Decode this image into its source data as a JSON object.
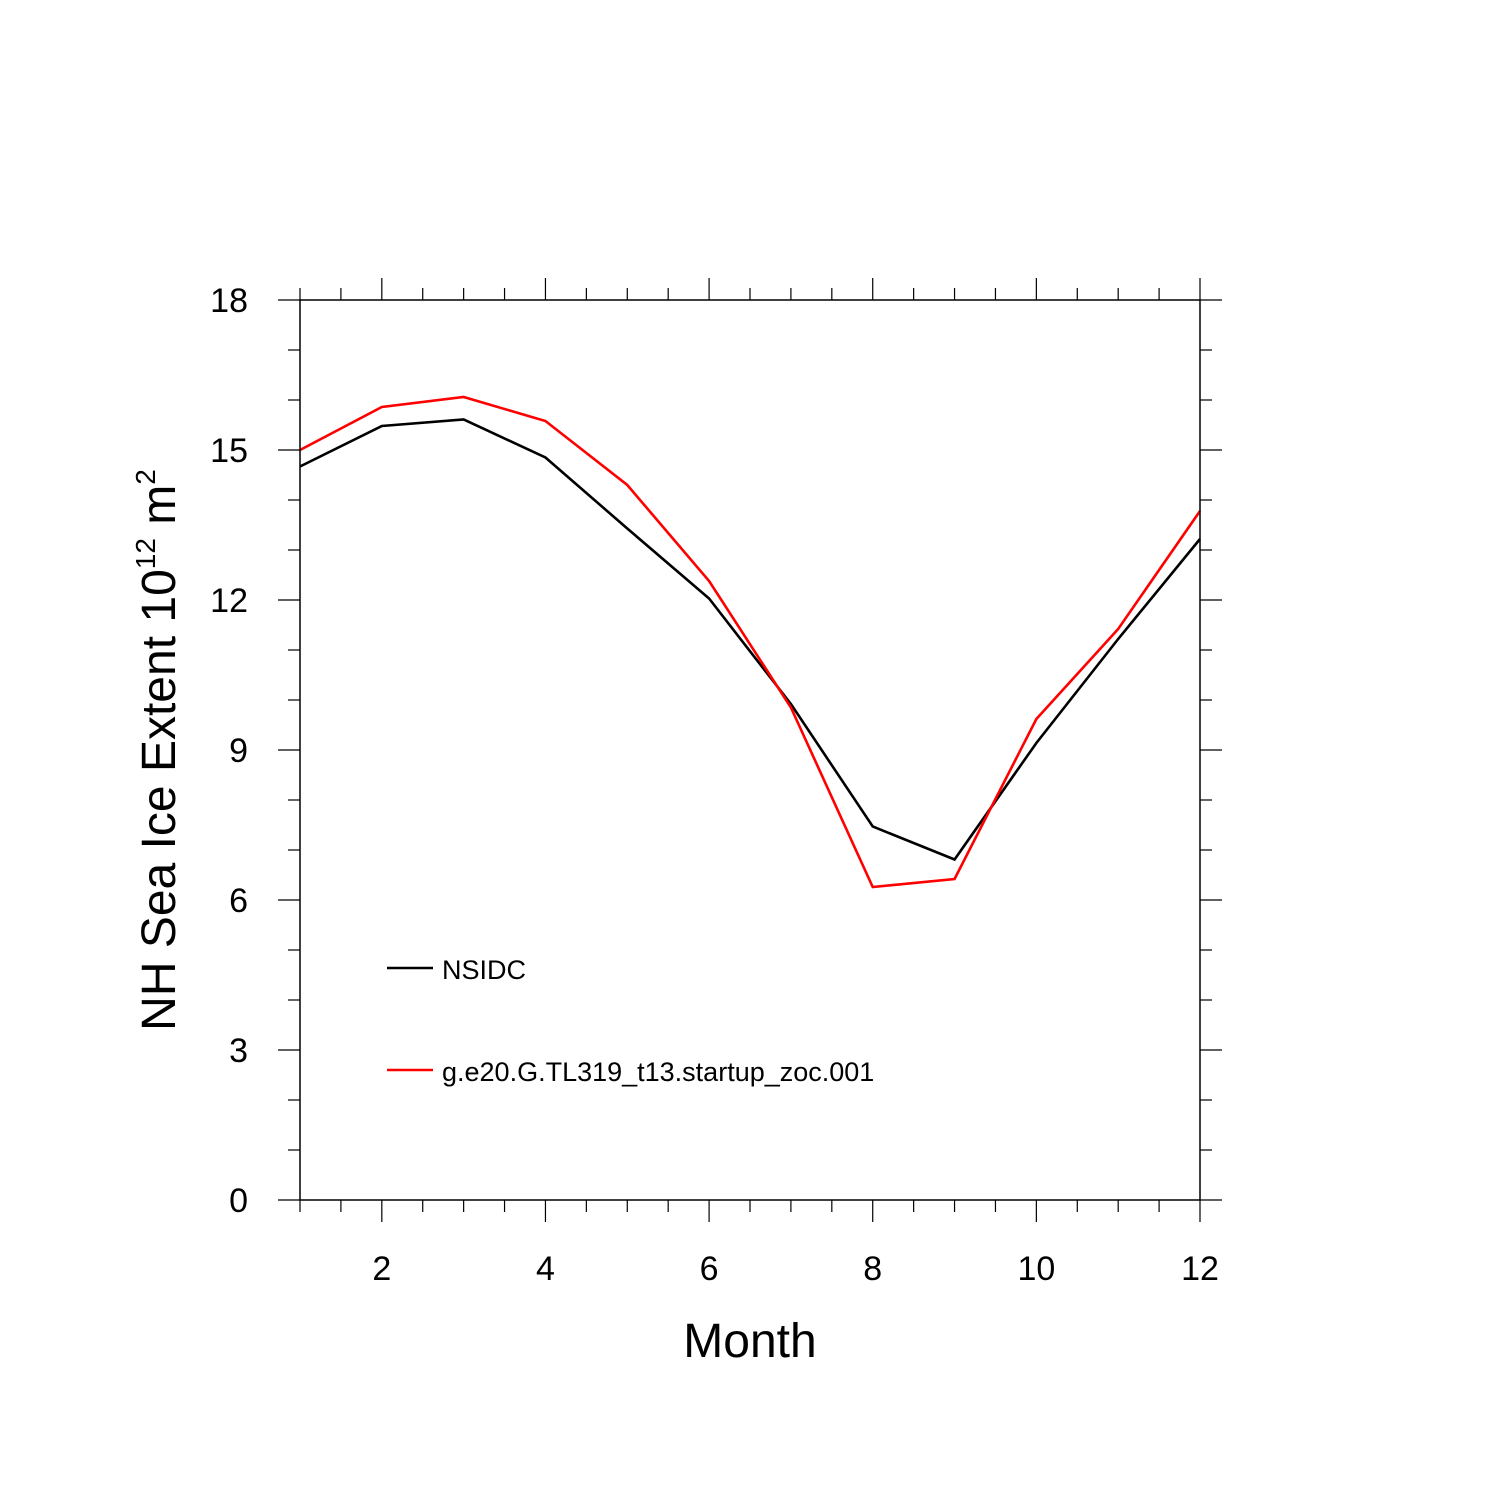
{
  "chart_data": {
    "type": "line",
    "xlabel": "Month",
    "ylabel": {
      "base": "NH Sea Ice Extent 10",
      "exponent": "12",
      "unit": " m",
      "unit_exponent": "2"
    },
    "xlim": [
      1,
      12
    ],
    "ylim": [
      0,
      18
    ],
    "x_ticks": [
      2,
      4,
      6,
      8,
      10,
      12
    ],
    "y_ticks": [
      0,
      3,
      6,
      9,
      12,
      15,
      18
    ],
    "grid": false,
    "legend_position": "lower-left inside",
    "x": [
      1,
      2,
      3,
      4,
      5,
      6,
      7,
      8,
      9,
      10,
      11,
      12
    ],
    "series": [
      {
        "name": "NSIDC",
        "color": "#000000",
        "values": [
          14.67,
          15.48,
          15.61,
          14.85,
          13.43,
          12.03,
          9.92,
          7.47,
          6.81,
          9.14,
          11.22,
          13.22
        ]
      },
      {
        "name": "g.e20.G.TL319_t13.startup_zoc.001",
        "color": "#ff0000",
        "values": [
          15.0,
          15.86,
          16.06,
          15.58,
          14.3,
          12.38,
          9.85,
          6.26,
          6.42,
          9.62,
          11.42,
          13.78
        ]
      }
    ]
  }
}
